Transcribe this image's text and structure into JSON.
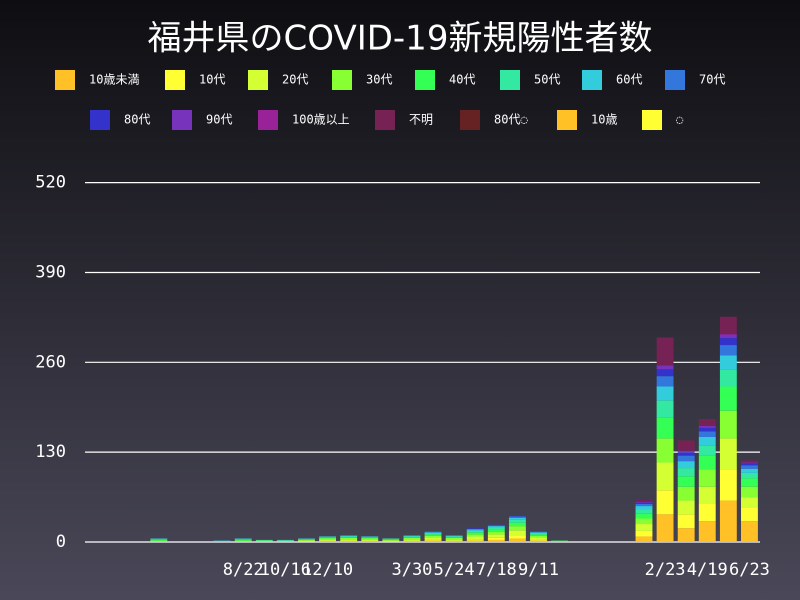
{
  "chart_data": {
    "type": "stacked-bar",
    "title": "福井県のCOVID-19新規陽性者数",
    "categories": [
      null,
      null,
      null,
      null,
      null,
      null,
      null,
      "8/22",
      null,
      "10/16",
      null,
      "12/10",
      null,
      null,
      null,
      "3/30",
      null,
      "5/24",
      null,
      "7/18",
      null,
      "9/11",
      null,
      null,
      null,
      null,
      null,
      "2/23",
      null,
      "4/19",
      null,
      "6/23"
    ],
    "ylim": [
      0,
      560
    ],
    "yticks": [
      0,
      130,
      260,
      390,
      520
    ],
    "grid": true,
    "series": [
      {
        "name": "10歳未満",
        "color": "#ffc125",
        "values": [
          0,
          0,
          0,
          0,
          0,
          0,
          0,
          0,
          0,
          0,
          0,
          1,
          1,
          1,
          0,
          1,
          2,
          1,
          2,
          3,
          5,
          2,
          0,
          0,
          0,
          0,
          8,
          40,
          20,
          30,
          60,
          30
        ]
      },
      {
        "name": "10代",
        "color": "#ffff33",
        "values": [
          0,
          0,
          0,
          0,
          0,
          0,
          0,
          0,
          0,
          0,
          1,
          1,
          1,
          1,
          1,
          1,
          2,
          1,
          2,
          3,
          5,
          2,
          0,
          0,
          0,
          0,
          8,
          35,
          20,
          25,
          45,
          20
        ]
      },
      {
        "name": "20代",
        "color": "#d4ff33",
        "values": [
          0,
          0,
          0,
          1,
          0,
          0,
          1,
          1,
          1,
          1,
          1,
          2,
          2,
          2,
          1,
          2,
          3,
          2,
          4,
          5,
          7,
          3,
          1,
          0,
          0,
          0,
          10,
          40,
          20,
          25,
          45,
          15
        ]
      },
      {
        "name": "30代",
        "color": "#88ff33",
        "values": [
          0,
          0,
          0,
          1,
          0,
          0,
          0,
          1,
          1,
          1,
          1,
          1,
          2,
          1,
          1,
          2,
          2,
          2,
          3,
          4,
          6,
          2,
          0,
          0,
          0,
          0,
          8,
          35,
          20,
          25,
          40,
          15
        ]
      },
      {
        "name": "40代",
        "color": "#33ff55",
        "values": [
          0,
          0,
          0,
          1,
          0,
          0,
          0,
          1,
          0,
          0,
          1,
          1,
          1,
          1,
          1,
          1,
          2,
          1,
          3,
          3,
          5,
          2,
          1,
          0,
          0,
          0,
          7,
          30,
          15,
          20,
          35,
          12
        ]
      },
      {
        "name": "50代",
        "color": "#33e8a0",
        "values": [
          0,
          0,
          0,
          1,
          0,
          0,
          0,
          1,
          1,
          0,
          0,
          1,
          1,
          1,
          1,
          1,
          2,
          1,
          2,
          3,
          4,
          2,
          0,
          0,
          0,
          0,
          6,
          25,
          12,
          15,
          25,
          8
        ]
      },
      {
        "name": "60代",
        "color": "#33ccdd",
        "values": [
          0,
          0,
          0,
          1,
          0,
          0,
          1,
          1,
          0,
          1,
          1,
          1,
          1,
          1,
          0,
          1,
          1,
          1,
          2,
          2,
          3,
          1,
          0,
          0,
          0,
          0,
          5,
          20,
          10,
          12,
          20,
          6
        ]
      },
      {
        "name": "70代",
        "color": "#3377dd",
        "values": [
          0,
          0,
          0,
          0,
          0,
          0,
          0,
          0,
          0,
          0,
          0,
          0,
          1,
          0,
          0,
          1,
          1,
          1,
          1,
          1,
          2,
          1,
          0,
          0,
          0,
          0,
          3,
          15,
          8,
          8,
          15,
          5
        ]
      },
      {
        "name": "80代",
        "color": "#3333cc",
        "values": [
          0,
          0,
          0,
          0,
          0,
          0,
          0,
          0,
          0,
          0,
          0,
          0,
          0,
          0,
          0,
          0,
          0,
          0,
          1,
          1,
          1,
          1,
          0,
          0,
          0,
          0,
          2,
          10,
          5,
          5,
          10,
          3
        ]
      },
      {
        "name": "90代",
        "color": "#7733bb",
        "values": [
          0,
          0,
          0,
          0,
          0,
          0,
          0,
          0,
          0,
          0,
          0,
          0,
          0,
          0,
          0,
          0,
          0,
          0,
          0,
          0,
          0,
          0,
          0,
          0,
          0,
          0,
          1,
          5,
          2,
          3,
          5,
          1
        ]
      },
      {
        "name": "100歳以上",
        "color": "#992299",
        "values": [
          0,
          0,
          0,
          0,
          0,
          0,
          0,
          0,
          0,
          0,
          0,
          0,
          0,
          0,
          0,
          0,
          0,
          0,
          0,
          0,
          0,
          0,
          0,
          0,
          0,
          0,
          0,
          1,
          0,
          0,
          1,
          0
        ]
      },
      {
        "name": "不明",
        "color": "#772255",
        "values": [
          0,
          0,
          0,
          0,
          0,
          0,
          0,
          0,
          0,
          0,
          0,
          0,
          0,
          0,
          0,
          0,
          0,
          0,
          0,
          0,
          0,
          0,
          0,
          0,
          0,
          0,
          3,
          40,
          15,
          10,
          25,
          3
        ]
      },
      {
        "name": "80代◌",
        "color": "#662222",
        "values": [
          0,
          0,
          0,
          0,
          0,
          0,
          0,
          0,
          0,
          0,
          0,
          0,
          0,
          0,
          0,
          0,
          0,
          0,
          0,
          0,
          0,
          0,
          0,
          0,
          0,
          0,
          0,
          0,
          0,
          0,
          0,
          0
        ]
      },
      {
        "name": "10歳",
        "color": "#ffc125",
        "values": [
          0,
          0,
          0,
          0,
          0,
          0,
          0,
          0,
          0,
          0,
          0,
          0,
          0,
          0,
          0,
          0,
          0,
          0,
          0,
          0,
          0,
          0,
          0,
          0,
          0,
          0,
          0,
          0,
          0,
          0,
          0,
          0
        ]
      },
      {
        "name": "◌",
        "color": "#ffff33",
        "values": [
          0,
          0,
          0,
          0,
          0,
          0,
          0,
          0,
          0,
          0,
          0,
          0,
          0,
          0,
          0,
          0,
          0,
          0,
          0,
          0,
          0,
          0,
          0,
          0,
          0,
          0,
          0,
          0,
          0,
          0,
          0,
          0
        ]
      }
    ]
  }
}
